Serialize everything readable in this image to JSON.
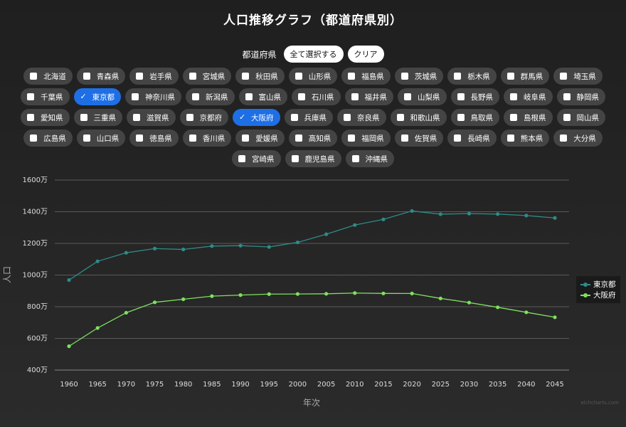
{
  "title": "人口推移グラフ（都道府県別）",
  "controls": {
    "label": "都道府県",
    "select_all": "全て選択する",
    "clear": "クリア"
  },
  "prefectures": [
    {
      "name": "北海道",
      "checked": false
    },
    {
      "name": "青森県",
      "checked": false
    },
    {
      "name": "岩手県",
      "checked": false
    },
    {
      "name": "宮城県",
      "checked": false
    },
    {
      "name": "秋田県",
      "checked": false
    },
    {
      "name": "山形県",
      "checked": false
    },
    {
      "name": "福島県",
      "checked": false
    },
    {
      "name": "茨城県",
      "checked": false
    },
    {
      "name": "栃木県",
      "checked": false
    },
    {
      "name": "群馬県",
      "checked": false
    },
    {
      "name": "埼玉県",
      "checked": false
    },
    {
      "name": "千葉県",
      "checked": false
    },
    {
      "name": "東京都",
      "checked": true
    },
    {
      "name": "神奈川県",
      "checked": false
    },
    {
      "name": "新潟県",
      "checked": false
    },
    {
      "name": "富山県",
      "checked": false
    },
    {
      "name": "石川県",
      "checked": false
    },
    {
      "name": "福井県",
      "checked": false
    },
    {
      "name": "山梨県",
      "checked": false
    },
    {
      "name": "長野県",
      "checked": false
    },
    {
      "name": "岐阜県",
      "checked": false
    },
    {
      "name": "静岡県",
      "checked": false
    },
    {
      "name": "愛知県",
      "checked": false
    },
    {
      "name": "三重県",
      "checked": false
    },
    {
      "name": "滋賀県",
      "checked": false
    },
    {
      "name": "京都府",
      "checked": false
    },
    {
      "name": "大阪府",
      "checked": true
    },
    {
      "name": "兵庫県",
      "checked": false
    },
    {
      "name": "奈良県",
      "checked": false
    },
    {
      "name": "和歌山県",
      "checked": false
    },
    {
      "name": "鳥取県",
      "checked": false
    },
    {
      "name": "島根県",
      "checked": false
    },
    {
      "name": "岡山県",
      "checked": false
    },
    {
      "name": "広島県",
      "checked": false
    },
    {
      "name": "山口県",
      "checked": false
    },
    {
      "name": "徳島県",
      "checked": false
    },
    {
      "name": "香川県",
      "checked": false
    },
    {
      "name": "愛媛県",
      "checked": false
    },
    {
      "name": "高知県",
      "checked": false
    },
    {
      "name": "福岡県",
      "checked": false
    },
    {
      "name": "佐賀県",
      "checked": false
    },
    {
      "name": "長崎県",
      "checked": false
    },
    {
      "name": "熊本県",
      "checked": false
    },
    {
      "name": "大分県",
      "checked": false
    },
    {
      "name": "宮崎県",
      "checked": false
    },
    {
      "name": "鹿児島県",
      "checked": false
    },
    {
      "name": "沖縄県",
      "checked": false
    }
  ],
  "chart_data": {
    "type": "line",
    "xlabel": "年次",
    "ylabel": "人口",
    "categories": [
      "1960",
      "1965",
      "1970",
      "1975",
      "1980",
      "1985",
      "1990",
      "1995",
      "2000",
      "2005",
      "2010",
      "2015",
      "2020",
      "2025",
      "2030",
      "2035",
      "2040",
      "2045"
    ],
    "yticks": [
      "400万",
      "600万",
      "800万",
      "1000万",
      "1200万",
      "1400万",
      "1600万"
    ],
    "ylim": [
      4000000,
      16000000
    ],
    "grid": true,
    "legend": "right",
    "series": [
      {
        "name": "東京都",
        "color": "#2e8b87",
        "values": [
          9684000,
          10869000,
          11408000,
          11674000,
          11618000,
          11829000,
          11856000,
          11774000,
          12064000,
          12577000,
          13159000,
          13515000,
          14048000,
          13846000,
          13883000,
          13852000,
          13758000,
          13607000
        ]
      },
      {
        "name": "大阪府",
        "color": "#7ee05e",
        "values": [
          5505000,
          6657000,
          7620000,
          8279000,
          8473000,
          8668000,
          8735000,
          8797000,
          8805000,
          8817000,
          8865000,
          8839000,
          8838000,
          8526000,
          8262000,
          7963000,
          7649000,
          7335000
        ]
      }
    ]
  },
  "watermark": "elchcharts.com"
}
